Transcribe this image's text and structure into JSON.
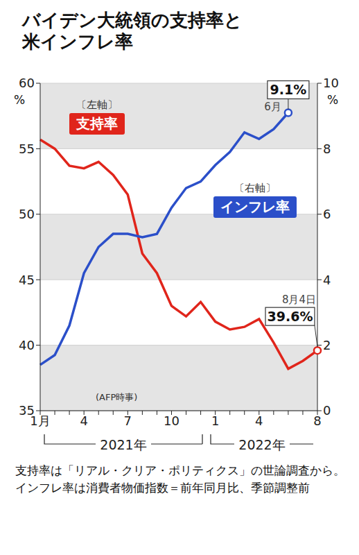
{
  "chart_data": {
    "type": "line",
    "title": "バイデン大統領の支持率と\n米インフレ率",
    "categories": [
      "1月",
      null,
      null,
      "4",
      null,
      null,
      "7",
      null,
      null,
      "10",
      null,
      null,
      "1",
      null,
      null,
      "4",
      null,
      null,
      null,
      "8"
    ],
    "x_groups": [
      {
        "label": "2021年",
        "from": 0,
        "to": 11
      },
      {
        "label": "2022年",
        "from": 12,
        "to": 19
      }
    ],
    "series": [
      {
        "name": "支持率",
        "color": "#e0251b",
        "axis": "y",
        "values": [
          55.7,
          55.0,
          53.7,
          53.5,
          54.0,
          53.0,
          51.5,
          47.0,
          45.5,
          43.0,
          42.2,
          43.3,
          41.8,
          41.2,
          41.4,
          42.0,
          40.2,
          38.2,
          38.8,
          39.6
        ],
        "value_labels": [
          null,
          null,
          null,
          null,
          null,
          null,
          null,
          null,
          null,
          null,
          null,
          null,
          null,
          null,
          null,
          null,
          null,
          null,
          null,
          "39.6%"
        ],
        "notes": [
          null,
          null,
          null,
          null,
          null,
          null,
          null,
          null,
          null,
          null,
          null,
          null,
          null,
          null,
          null,
          null,
          null,
          null,
          null,
          "8月4日"
        ]
      },
      {
        "name": "インフレ率",
        "color": "#2b4fc9",
        "axis": "y2",
        "values": [
          1.4,
          1.7,
          2.6,
          4.2,
          5.0,
          5.4,
          5.4,
          5.3,
          5.4,
          6.2,
          6.8,
          7.0,
          7.5,
          7.9,
          8.5,
          8.3,
          8.6,
          9.1,
          null,
          null
        ],
        "value_labels": [
          null,
          null,
          null,
          null,
          null,
          null,
          null,
          null,
          null,
          null,
          null,
          null,
          null,
          null,
          null,
          null,
          null,
          "9.1%",
          null,
          null
        ],
        "notes": [
          null,
          null,
          null,
          null,
          null,
          null,
          null,
          null,
          null,
          null,
          null,
          null,
          null,
          null,
          null,
          null,
          null,
          "6月",
          null,
          null
        ]
      }
    ],
    "ylim": [
      35,
      60
    ],
    "yticks": [
      35,
      40,
      45,
      50,
      55,
      60
    ],
    "y2lim": [
      0,
      10
    ],
    "y2ticks": [
      0,
      2,
      4,
      6,
      8,
      10
    ],
    "ylabel": "〔左軸〕",
    "y2label": "〔右軸〕",
    "yunit": "%",
    "y2unit": "%",
    "grid": true,
    "credit": "(AFP時事)",
    "caption": "支持率は「リアル・クリア・ポリティクス」の世論調査から。インフレ率は消費者物価指数＝前年同月比、季節調整前"
  }
}
